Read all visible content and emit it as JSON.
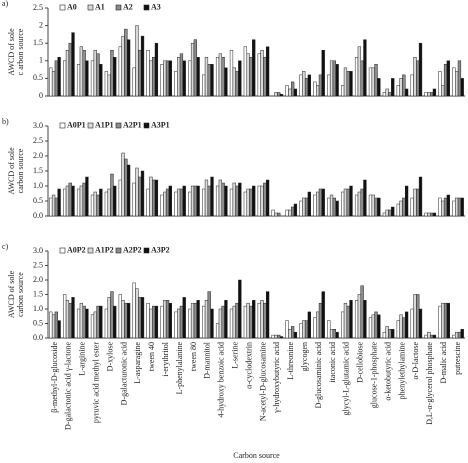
{
  "chart_data": [
    {
      "type": "bar",
      "panel_label": "a)",
      "ylabel": [
        "AWCD of sole",
        "c arbon source"
      ],
      "ylim": [
        0,
        2.5
      ],
      "yticks": [
        0,
        0.5,
        1,
        1.5,
        2,
        2.5
      ],
      "series": [
        {
          "name": "A0",
          "color": "#ffffff",
          "values": [
            0.8,
            1.0,
            0.9,
            1.0,
            0.7,
            1.4,
            0.8,
            1.3,
            0.9,
            0.7,
            1.0,
            0.6,
            1.1,
            1.3,
            1.4,
            1.2,
            0.0,
            0.3,
            0.6,
            0.4,
            0.6,
            0.3,
            1.1,
            0.8,
            0.1,
            0.3,
            0.6,
            0.1,
            0.7,
            0.8
          ]
        },
        {
          "name": "A1",
          "color": "#d9d9d9",
          "values": [
            0.7,
            1.3,
            1.4,
            1.3,
            0.6,
            1.7,
            2.0,
            1.0,
            1.0,
            1.1,
            1.5,
            1.1,
            1.2,
            0.8,
            1.2,
            1.3,
            0.1,
            0.2,
            0.7,
            0.3,
            1.0,
            0.8,
            1.4,
            0.8,
            0.2,
            0.5,
            1.1,
            0.1,
            0.3,
            0.7
          ]
        },
        {
          "name": "A2",
          "color": "#8c8c8c",
          "values": [
            1.0,
            1.5,
            1.3,
            1.2,
            1.3,
            1.9,
            1.3,
            1.1,
            1.0,
            1.2,
            1.6,
            0.9,
            1.1,
            0.7,
            1.1,
            1.1,
            0.1,
            0.4,
            0.5,
            0.6,
            1.0,
            0.7,
            1.0,
            0.9,
            0.1,
            0.6,
            1.0,
            0.1,
            0.9,
            1.0
          ]
        },
        {
          "name": "A3",
          "color": "#111111",
          "values": [
            1.1,
            1.8,
            1.0,
            0.9,
            1.1,
            1.6,
            1.7,
            1.5,
            1.0,
            1.0,
            1.1,
            0.9,
            0.8,
            1.0,
            1.6,
            1.4,
            0.05,
            0.2,
            0.6,
            1.3,
            0.9,
            0.7,
            1.6,
            0.5,
            0.5,
            0.2,
            1.5,
            0.2,
            1.0,
            0.5
          ]
        }
      ]
    },
    {
      "type": "bar",
      "panel_label": "b)",
      "ylabel": [
        "AWCD of sole",
        "carbon source"
      ],
      "ylim": [
        0,
        3
      ],
      "yticks": [
        {
          "value": 0,
          "label": "0.0"
        },
        0.5,
        {
          "value": 1,
          "label": "1.0"
        },
        1.5,
        {
          "value": 2,
          "label": "2.0"
        },
        2.5,
        {
          "value": 3,
          "label": "3.0"
        }
      ],
      "series": [
        {
          "name": "A0P1",
          "color": "#ffffff",
          "values": [
            0.6,
            0.9,
            0.9,
            0.7,
            0.8,
            1.2,
            1.1,
            0.9,
            0.7,
            0.8,
            0.8,
            0.9,
            1.0,
            0.9,
            0.8,
            1.0,
            0.2,
            0.2,
            0.5,
            0.7,
            0.6,
            0.8,
            0.7,
            0.7,
            0.1,
            0.4,
            0.6,
            0.1,
            0.6,
            0.5
          ]
        },
        {
          "name": "A1P1",
          "color": "#d9d9d9",
          "values": [
            0.7,
            1.0,
            1.0,
            0.8,
            0.9,
            2.1,
            1.6,
            1.3,
            0.8,
            0.9,
            1.0,
            1.2,
            1.2,
            1.1,
            0.9,
            1.0,
            0.1,
            0.2,
            0.6,
            0.8,
            0.7,
            0.9,
            0.8,
            0.7,
            0.2,
            0.5,
            0.9,
            0.1,
            0.5,
            0.6
          ]
        },
        {
          "name": "A2P1",
          "color": "#8c8c8c",
          "values": [
            0.6,
            1.1,
            1.1,
            0.7,
            1.4,
            1.9,
            1.3,
            1.2,
            0.9,
            0.9,
            1.0,
            1.0,
            1.1,
            1.0,
            0.9,
            1.1,
            0.1,
            0.3,
            0.6,
            0.9,
            0.6,
            0.9,
            0.9,
            0.6,
            0.2,
            0.6,
            0.9,
            0.1,
            0.6,
            0.6
          ]
        },
        {
          "name": "A3P1",
          "color": "#111111",
          "values": [
            0.9,
            1.0,
            1.3,
            0.9,
            1.0,
            1.7,
            1.5,
            1.2,
            1.0,
            1.0,
            1.0,
            1.3,
            1.0,
            1.1,
            1.0,
            1.2,
            0.0,
            0.4,
            0.8,
            0.9,
            0.5,
            1.0,
            1.2,
            0.6,
            0.3,
            1.0,
            1.3,
            0.1,
            0.7,
            0.6
          ]
        }
      ]
    },
    {
      "type": "bar",
      "panel_label": "c)",
      "ylabel": [
        "AWCD of sole",
        "carbon source"
      ],
      "xlabel": "Carbon source",
      "ylim": [
        0,
        3
      ],
      "yticks": [
        {
          "value": 0,
          "label": "0.0"
        },
        0.5,
        {
          "value": 1,
          "label": "1.0"
        },
        1.5,
        {
          "value": 2,
          "label": "2.0"
        },
        2.5,
        {
          "value": 3,
          "label": "3.0"
        }
      ],
      "categories": [
        "β-methyl-D-glucoside",
        "D-galactonic acid γ-lactone",
        "L-arginine",
        "pyruvic acid methyl ester",
        "D-xylose",
        "D-galacturonic acid",
        "L-asparagine",
        "tween 40",
        "i-erythritol",
        "L-phenylalanine",
        "tween 80",
        "D-mannitol",
        "4-hydroxy benzoic acid",
        "L-serine",
        "α-cyclodextrin",
        "N-acetyl-D-glucosamine",
        "γ-hydroxybutyric acid",
        "L-threonine",
        "glycogen",
        "D-glucosaminic acid",
        "itaconic acid",
        "glycyl-L-glutamic acid",
        "D-cellobiose",
        "glucose-1-phosphate",
        "α-ketobutyric acid",
        "phenylethylamine",
        "α-D-lactose",
        "D,L-α-glycerol phosphate",
        "D-malic acid",
        "putrescine"
      ],
      "series": [
        {
          "name": "A0P2",
          "color": "#ffffff",
          "values": [
            0.9,
            1.5,
            1.0,
            0.8,
            1.0,
            1.5,
            1.9,
            1.2,
            1.1,
            0.9,
            1.0,
            1.1,
            0.5,
            1.0,
            1.1,
            1.2,
            0.1,
            0.6,
            0.5,
            0.7,
            0.6,
            0.9,
            1.3,
            0.7,
            0.2,
            0.6,
            1.0,
            0.1,
            1.1,
            0.1
          ]
        },
        {
          "name": "A1P2",
          "color": "#d9d9d9",
          "values": [
            0.8,
            1.3,
            1.2,
            0.9,
            1.4,
            1.3,
            1.7,
            1.0,
            1.3,
            1.0,
            1.2,
            1.3,
            1.0,
            1.1,
            1.2,
            1.3,
            0.1,
            0.3,
            0.6,
            0.9,
            0.3,
            1.2,
            1.5,
            0.8,
            0.4,
            0.8,
            1.5,
            0.2,
            1.2,
            0.2
          ]
        },
        {
          "name": "A2P2",
          "color": "#8c8c8c",
          "values": [
            0.9,
            1.2,
            1.1,
            1.1,
            1.6,
            1.2,
            1.4,
            1.1,
            1.3,
            1.1,
            1.2,
            1.6,
            1.1,
            1.2,
            1.1,
            1.2,
            0.1,
            0.4,
            0.6,
            1.2,
            0.3,
            1.1,
            1.8,
            0.9,
            0.3,
            0.7,
            1.5,
            0.1,
            1.2,
            0.2
          ]
        },
        {
          "name": "A3P2",
          "color": "#111111",
          "values": [
            0.6,
            1.4,
            1.0,
            1.1,
            1.1,
            1.2,
            1.4,
            1.1,
            1.2,
            1.4,
            1.3,
            1.0,
            1.3,
            2.0,
            1.3,
            1.6,
            0.05,
            0.2,
            0.9,
            1.6,
            0.2,
            1.3,
            1.3,
            0.8,
            0.3,
            0.9,
            1.0,
            0.1,
            1.2,
            0.3
          ]
        }
      ]
    }
  ]
}
